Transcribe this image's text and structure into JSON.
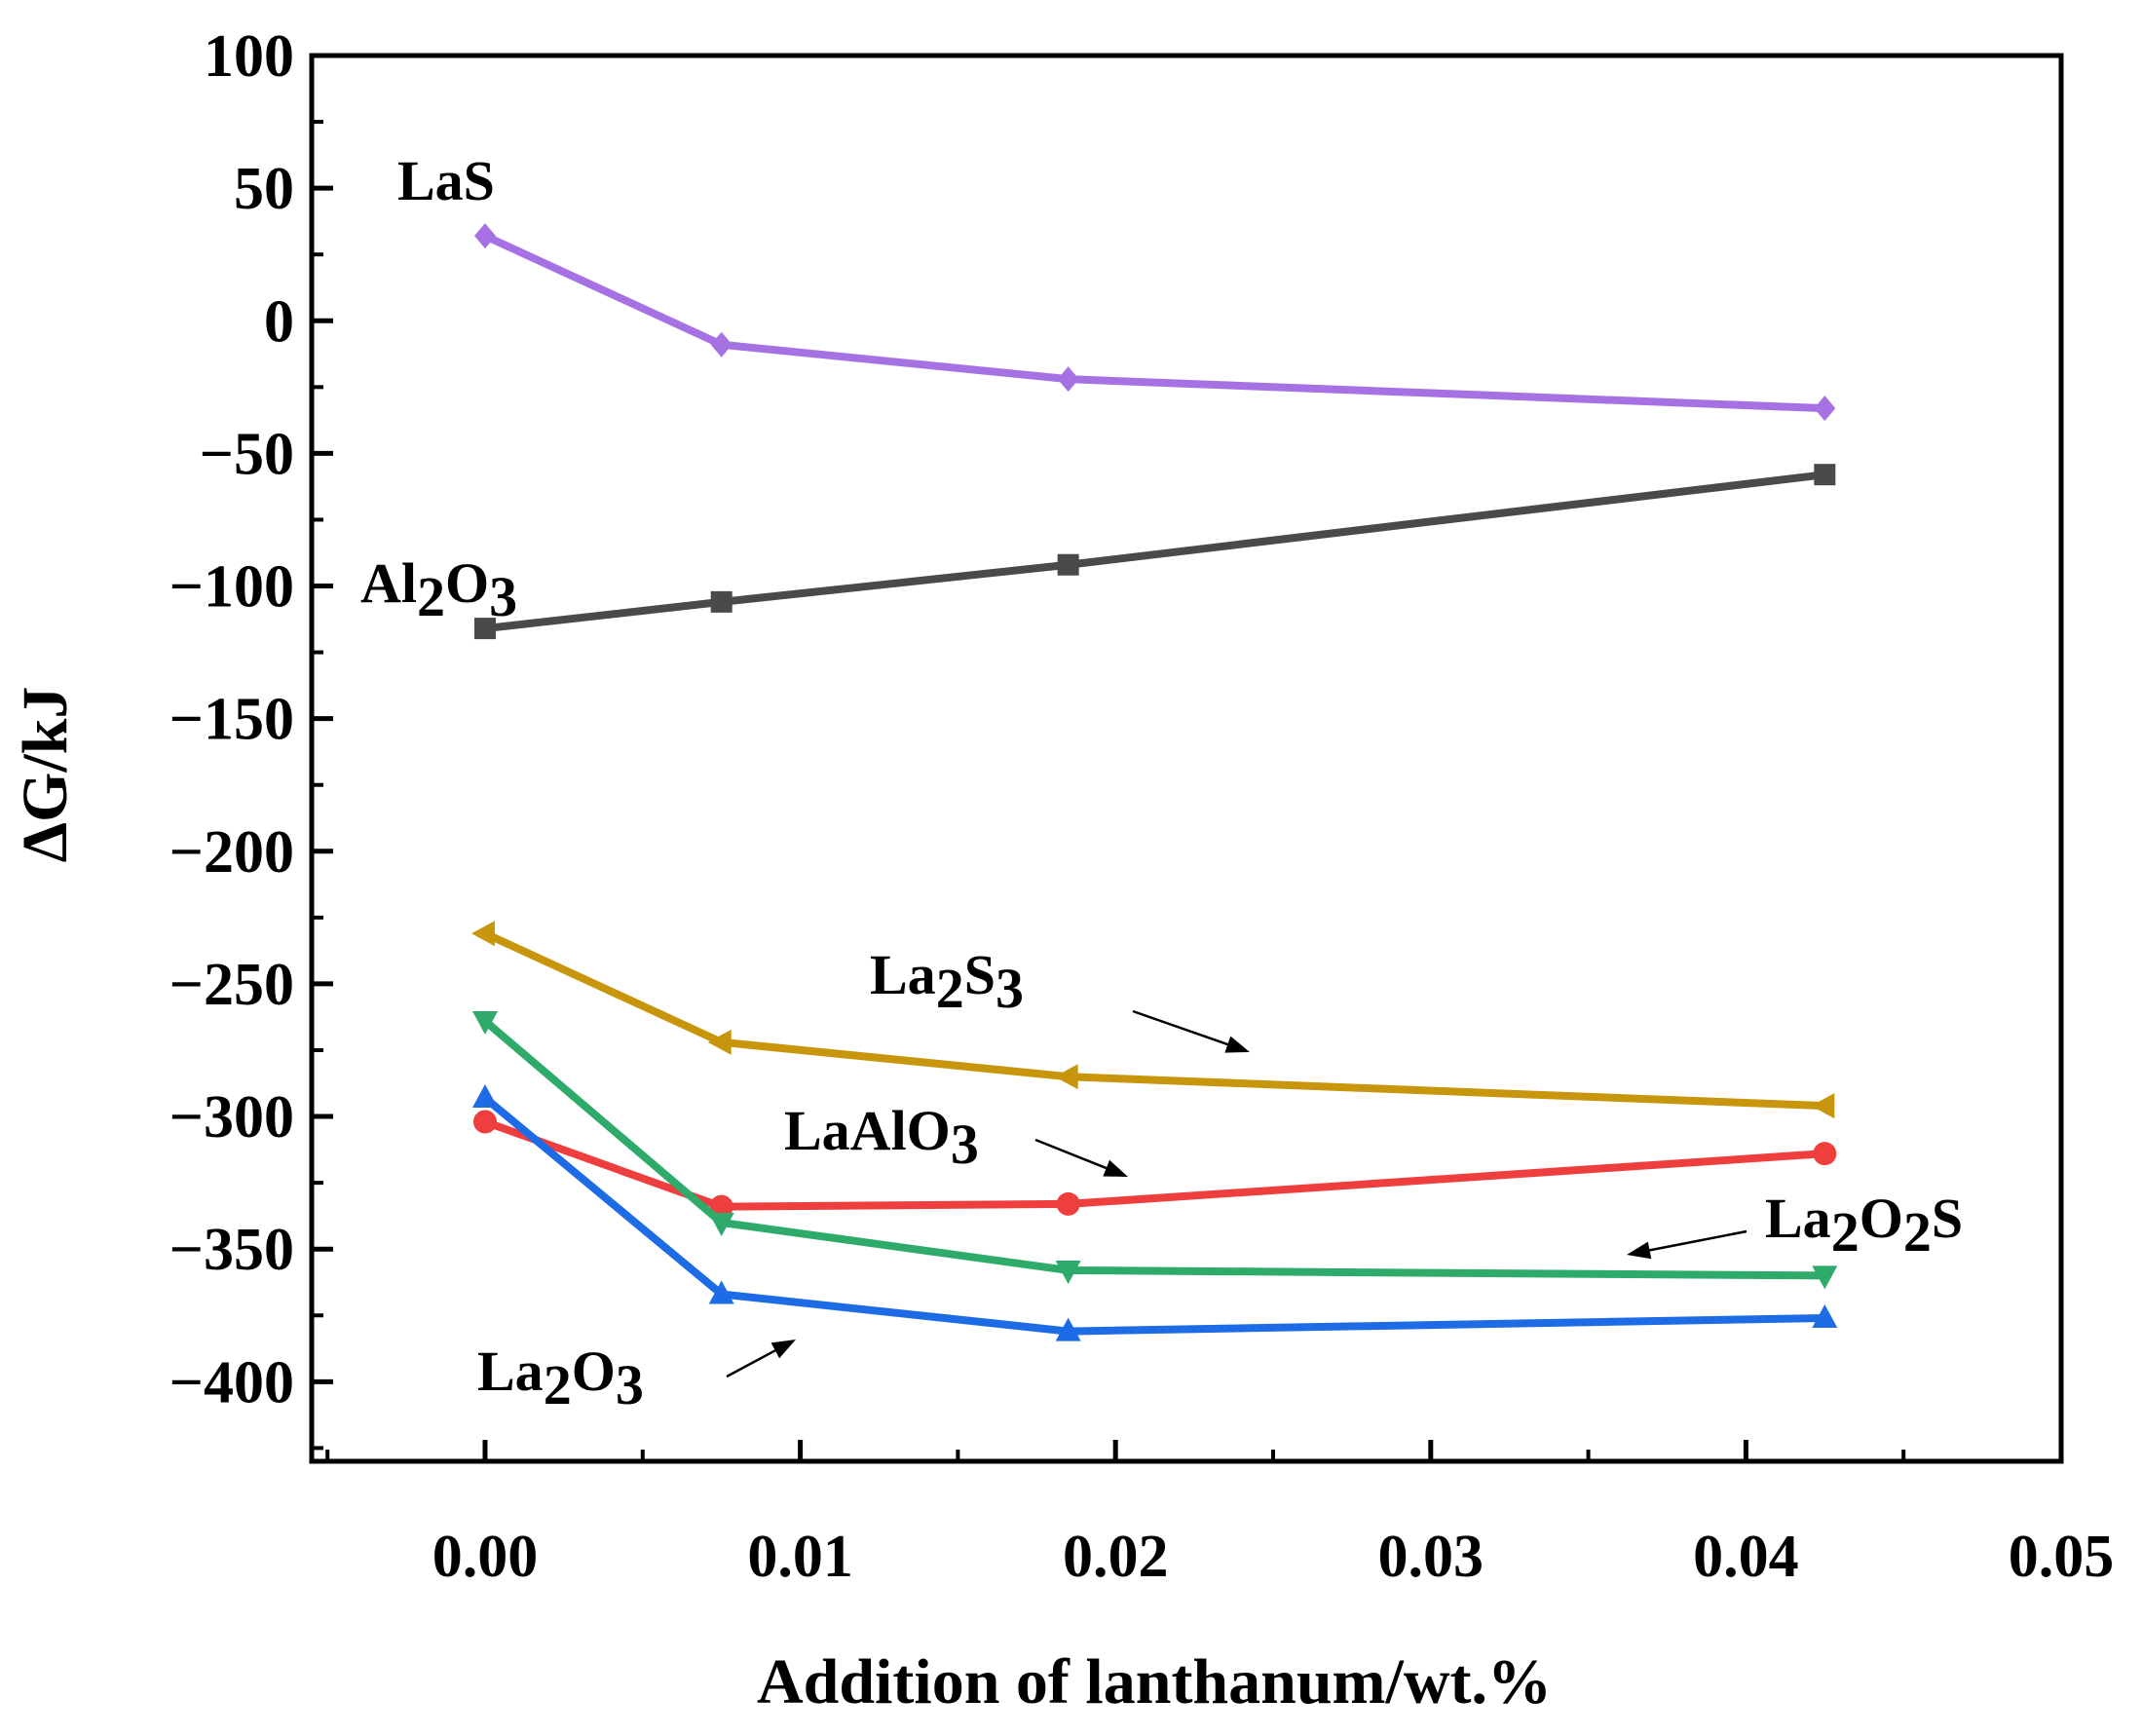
{
  "chart_data": {
    "type": "line",
    "title": "",
    "xlabel": "Addition of  lanthanum/wt.%",
    "ylabel": "ΔG/kJ",
    "xlim": [
      -0.0055,
      0.05
    ],
    "ylim": [
      -430,
      100
    ],
    "xticks": [
      0.0,
      0.01,
      0.02,
      0.03,
      0.04,
      0.05
    ],
    "xtick_labels": [
      "0.00",
      "0.01",
      "0.02",
      "0.03",
      "0.04",
      "0.05"
    ],
    "yticks": [
      100,
      50,
      0,
      -50,
      -100,
      -150,
      -200,
      -250,
      -300,
      -350,
      -400
    ],
    "ytick_labels": [
      "100",
      "50",
      "0",
      "−50",
      "−100",
      "−150",
      "−200",
      "−250",
      "−300",
      "−350",
      "−400"
    ],
    "grid": false,
    "x": [
      0.0,
      0.0075,
      0.0185,
      0.0425
    ],
    "series": [
      {
        "name": "LaS",
        "label_main": "LaS",
        "label_parts": [
          [
            "LaS",
            false
          ]
        ],
        "color": "#a672e3",
        "marker": "diamond",
        "values": [
          32,
          -9,
          -22,
          -33
        ]
      },
      {
        "name": "Al2O3",
        "label_parts": [
          [
            "Al",
            false
          ],
          [
            "2",
            true
          ],
          [
            "O",
            false
          ],
          [
            "3",
            true
          ]
        ],
        "color": "#4a4a4a",
        "marker": "square",
        "values": [
          -116,
          -106,
          -92,
          -58
        ]
      },
      {
        "name": "La2S3",
        "label_parts": [
          [
            "La",
            false
          ],
          [
            "2",
            true
          ],
          [
            "S",
            false
          ],
          [
            "3",
            true
          ]
        ],
        "color": "#c8960c",
        "marker": "triangle-left",
        "values": [
          -231,
          -272,
          -285,
          -296
        ]
      },
      {
        "name": "LaAlO3",
        "label_parts": [
          [
            "LaAlO",
            false
          ],
          [
            "3",
            true
          ]
        ],
        "color": "#ee3e3e",
        "marker": "circle",
        "values": [
          -302,
          -334,
          -333,
          -314
        ]
      },
      {
        "name": "La2O2S",
        "label_parts": [
          [
            "La",
            false
          ],
          [
            "2",
            true
          ],
          [
            "O",
            false
          ],
          [
            "2",
            true
          ],
          [
            "S",
            false
          ]
        ],
        "color": "#2eaa6a",
        "marker": "triangle-down",
        "values": [
          -264,
          -340,
          -358,
          -360
        ]
      },
      {
        "name": "La2O3",
        "label_parts": [
          [
            "La",
            false
          ],
          [
            "2",
            true
          ],
          [
            "O",
            false
          ],
          [
            "3",
            true
          ]
        ],
        "color": "#1e6be6",
        "marker": "triangle-up",
        "values": [
          -293,
          -367,
          -381,
          -376
        ]
      }
    ]
  }
}
